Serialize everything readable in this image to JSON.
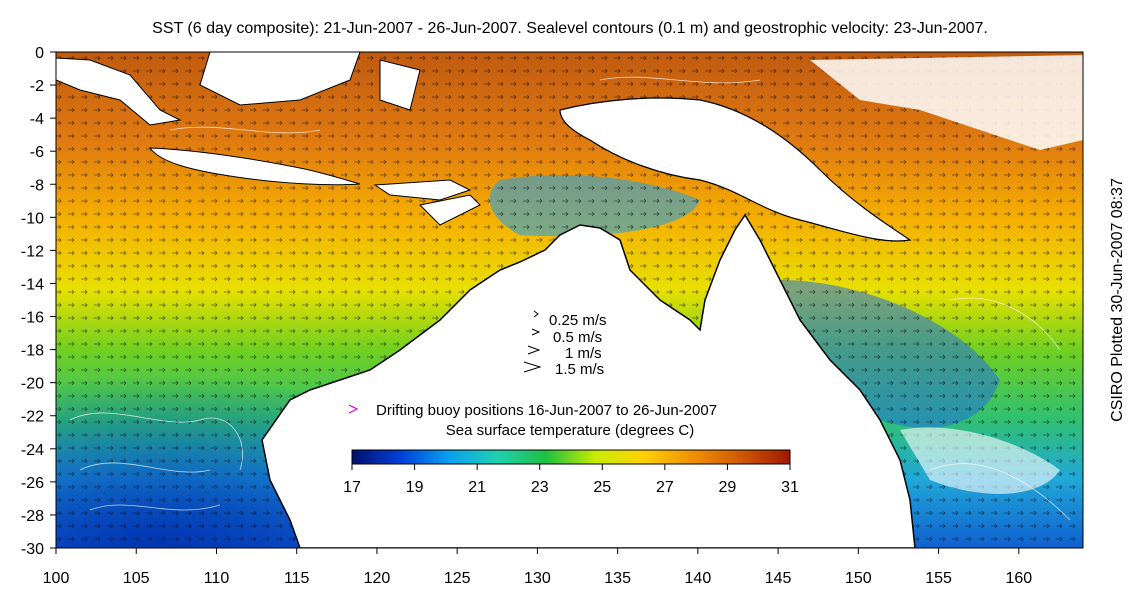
{
  "title": "SST (6 day composite): 21-Jun-2007 - 26-Jun-2007. Sealevel contours (0.1 m) and geostrophic velocity: 23-Jun-2007.",
  "side_note": "CSIRO Plotted 30-Jun-2007 08:37",
  "velocity_legend": [
    "0.25 m/s",
    "0.5 m/s",
    "1 m/s",
    "1.5 m/s"
  ],
  "buoy_legend": "Drifting buoy positions 16-Jun-2007 to 26-Jun-2007",
  "colorbar": {
    "label": "Sea surface temperature (degrees C)",
    "ticks": [
      "17",
      "19",
      "21",
      "23",
      "25",
      "27",
      "29",
      "31"
    ],
    "colors": [
      "#00106e",
      "#0040d8",
      "#0aa0f0",
      "#20d0b0",
      "#20c040",
      "#c8ec00",
      "#ffd000",
      "#f09000",
      "#d05800",
      "#a01800"
    ]
  },
  "axes": {
    "x_ticks": [
      "100",
      "105",
      "110",
      "115",
      "120",
      "125",
      "130",
      "135",
      "140",
      "145",
      "150",
      "155",
      "160"
    ],
    "y_ticks": [
      "0",
      "-2",
      "-4",
      "-6",
      "-8",
      "-10",
      "-12",
      "-14",
      "-16",
      "-18",
      "-20",
      "-22",
      "-24",
      "-26",
      "-28",
      "-30"
    ]
  },
  "colors": {
    "land": "#ffffff",
    "coast": "#000000",
    "buoy": "#e000e0"
  }
}
